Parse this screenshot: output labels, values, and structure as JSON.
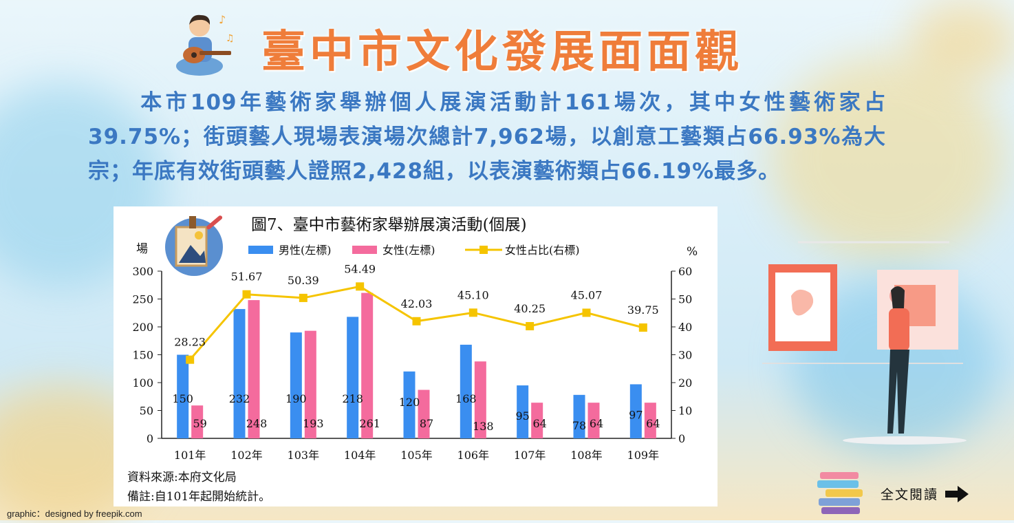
{
  "header": {
    "title": "臺中市文化發展面面觀"
  },
  "summary": {
    "text": "本市109年藝術家舉辦個人展演活動計161場次，其中女性藝術家占39.75%；街頭藝人現場表演場次總計7,962場，以創意工藝類占66.93%為大宗；年底有效街頭藝人證照2,428組，以表演藝術類占66.19%最多。"
  },
  "chart_data": {
    "type": "bar",
    "title": "圖7、臺中市藝術家舉辦展演活動(個展)",
    "ylabel_left": "場",
    "ylabel_right": "%",
    "categories": [
      "101年",
      "102年",
      "103年",
      "104年",
      "105年",
      "106年",
      "107年",
      "108年",
      "109年"
    ],
    "ylim_left": [
      0,
      300
    ],
    "ylim_right": [
      0,
      60
    ],
    "left_ticks": [
      "0",
      "50",
      "100",
      "150",
      "200",
      "250",
      "300"
    ],
    "right_ticks": [
      "0",
      "10",
      "20",
      "30",
      "40",
      "50",
      "60"
    ],
    "legend_position": "top",
    "grid": false,
    "series": [
      {
        "name": "男性(左標)",
        "type": "bar",
        "axis": "left",
        "color": "#3a8ef0",
        "values": [
          150,
          232,
          190,
          218,
          120,
          168,
          95,
          78,
          97
        ],
        "labels": [
          "150",
          "232",
          "190",
          "218",
          "120",
          "168",
          "95",
          "78",
          "97"
        ]
      },
      {
        "name": "女性(左標)",
        "type": "bar",
        "axis": "left",
        "color": "#f46b9d",
        "values": [
          59,
          248,
          193,
          261,
          87,
          138,
          64,
          64,
          64
        ],
        "labels": [
          "59",
          "248",
          "193",
          "261",
          "87",
          "138",
          "64",
          "64",
          "64"
        ]
      },
      {
        "name": "女性占比(右標)",
        "type": "line",
        "axis": "right",
        "color": "#f5c400",
        "values": [
          28.23,
          51.67,
          50.39,
          54.49,
          42.03,
          45.1,
          40.25,
          45.07,
          39.75
        ],
        "labels": [
          "28.23",
          "51.67",
          "50.39",
          "54.49",
          "42.03",
          "45.10",
          "40.25",
          "45.07",
          "39.75"
        ]
      }
    ],
    "source": "資料來源:本府文化局",
    "note": "備註:自101年起開始統計。"
  },
  "footer": {
    "credit": "graphic：designed by freepik.com",
    "read_more": "全文閱讀"
  },
  "icons": [
    "guitar-player-icon",
    "art-palette-icon",
    "gallery-visitor-illustration",
    "books-icon",
    "arrow-right-icon"
  ]
}
